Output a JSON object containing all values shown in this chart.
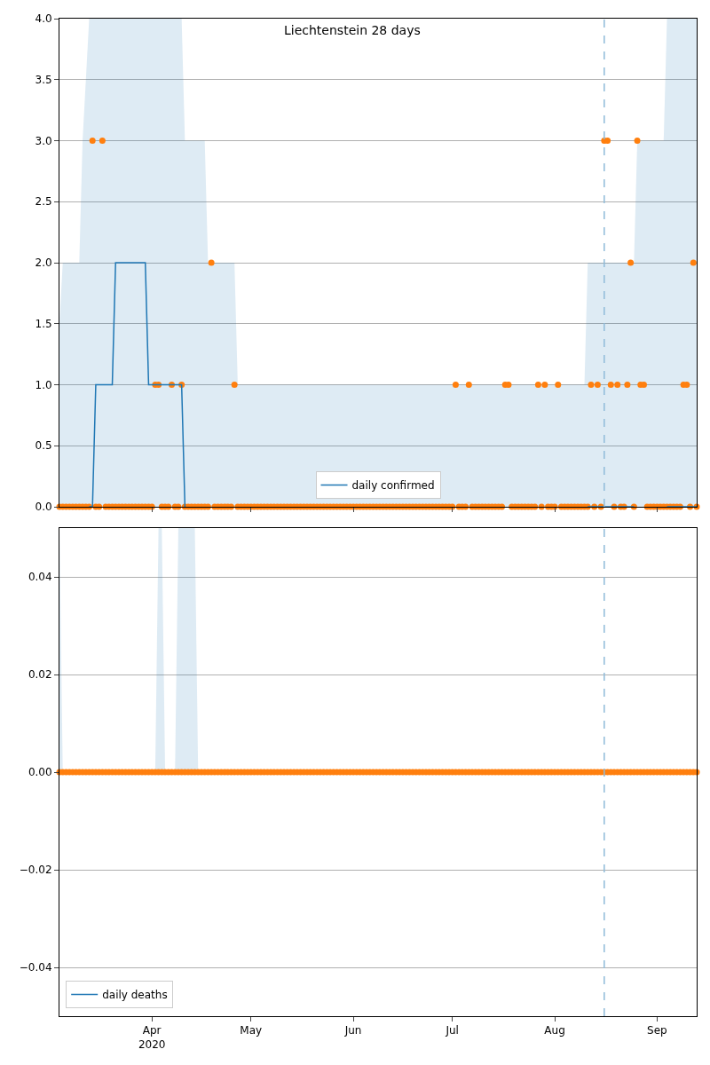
{
  "chart_data": [
    {
      "type": "line",
      "title": "Liechtenstein 28 days",
      "x": [
        "2020-03-04",
        "2020-03-05",
        "2020-03-06",
        "2020-03-07",
        "2020-03-08",
        "2020-03-09",
        "2020-03-10",
        "2020-03-11",
        "2020-03-12",
        "2020-03-13",
        "2020-03-14",
        "2020-03-15",
        "2020-03-16",
        "2020-03-17",
        "2020-03-18",
        "2020-03-19",
        "2020-03-20",
        "2020-03-21",
        "2020-03-22",
        "2020-03-23",
        "2020-03-24",
        "2020-03-25",
        "2020-03-26",
        "2020-03-27",
        "2020-03-28",
        "2020-03-29",
        "2020-03-30",
        "2020-03-31",
        "2020-04-01",
        "2020-04-02",
        "2020-04-03",
        "2020-04-04",
        "2020-04-05",
        "2020-04-06",
        "2020-04-07",
        "2020-04-08",
        "2020-04-09",
        "2020-04-10",
        "2020-04-11",
        "2020-04-12",
        "2020-04-13",
        "2020-04-14",
        "2020-04-15",
        "2020-04-16",
        "2020-04-17",
        "2020-04-18",
        "2020-04-19",
        "2020-04-20",
        "2020-04-21",
        "2020-04-22",
        "2020-04-23",
        "2020-04-24",
        "2020-04-25",
        "2020-04-26",
        "2020-04-27",
        "2020-04-28",
        "2020-04-29",
        "2020-04-30",
        "2020-05-01",
        "2020-05-02",
        "2020-05-03",
        "2020-05-04",
        "2020-05-05",
        "2020-05-06",
        "2020-05-07",
        "2020-05-08",
        "2020-05-09",
        "2020-05-10",
        "2020-05-11",
        "2020-05-12",
        "2020-05-13",
        "2020-05-14",
        "2020-05-15",
        "2020-05-16",
        "2020-05-17",
        "2020-05-18",
        "2020-05-19",
        "2020-05-20",
        "2020-05-21",
        "2020-05-22",
        "2020-05-23",
        "2020-05-24",
        "2020-05-25",
        "2020-05-26",
        "2020-05-27",
        "2020-05-28",
        "2020-05-29",
        "2020-05-30",
        "2020-05-31",
        "2020-06-01",
        "2020-06-02",
        "2020-06-03",
        "2020-06-04",
        "2020-06-05",
        "2020-06-06",
        "2020-06-07",
        "2020-06-08",
        "2020-06-09",
        "2020-06-10",
        "2020-06-11",
        "2020-06-12",
        "2020-06-13",
        "2020-06-14",
        "2020-06-15",
        "2020-06-16",
        "2020-06-17",
        "2020-06-18",
        "2020-06-19",
        "2020-06-20",
        "2020-06-21",
        "2020-06-22",
        "2020-06-23",
        "2020-06-24",
        "2020-06-25",
        "2020-06-26",
        "2020-06-27",
        "2020-06-28",
        "2020-06-29",
        "2020-06-30",
        "2020-07-01",
        "2020-07-02",
        "2020-07-03",
        "2020-07-04",
        "2020-07-05",
        "2020-07-06",
        "2020-07-07",
        "2020-07-08",
        "2020-07-09",
        "2020-07-10",
        "2020-07-11",
        "2020-07-12",
        "2020-07-13",
        "2020-07-14",
        "2020-07-15",
        "2020-07-16",
        "2020-07-17",
        "2020-07-18",
        "2020-07-19",
        "2020-07-20",
        "2020-07-21",
        "2020-07-22",
        "2020-07-23",
        "2020-07-24",
        "2020-07-25",
        "2020-07-26",
        "2020-07-27",
        "2020-07-28",
        "2020-07-29",
        "2020-07-30",
        "2020-07-31",
        "2020-08-01",
        "2020-08-02",
        "2020-08-03",
        "2020-08-04",
        "2020-08-05",
        "2020-08-06",
        "2020-08-07",
        "2020-08-08",
        "2020-08-09",
        "2020-08-10",
        "2020-08-11",
        "2020-08-12",
        "2020-08-13",
        "2020-08-14",
        "2020-08-15",
        "2020-08-16",
        "2020-08-17",
        "2020-08-18",
        "2020-08-19",
        "2020-08-20",
        "2020-08-21",
        "2020-08-22",
        "2020-08-23",
        "2020-08-24",
        "2020-08-25",
        "2020-08-26",
        "2020-08-27",
        "2020-08-28",
        "2020-08-29",
        "2020-08-30",
        "2020-08-31",
        "2020-09-01",
        "2020-09-02",
        "2020-09-03",
        "2020-09-04",
        "2020-09-05",
        "2020-09-06",
        "2020-09-07",
        "2020-09-08",
        "2020-09-09",
        "2020-09-10",
        "2020-09-11",
        "2020-09-12",
        "2020-09-13"
      ],
      "series": [
        {
          "type": "scatter",
          "color": "#ff7f0e",
          "marker": "circle",
          "values": [
            0,
            0,
            0,
            0,
            0,
            0,
            0,
            0,
            0,
            0,
            3,
            0,
            0,
            3,
            0,
            0,
            0,
            0,
            0,
            0,
            0,
            0,
            0,
            0,
            0,
            0,
            0,
            0,
            0,
            1,
            1,
            0,
            0,
            0,
            1,
            0,
            0,
            1,
            0,
            0,
            0,
            0,
            0,
            0,
            0,
            0,
            2,
            0,
            0,
            0,
            0,
            0,
            0,
            1,
            0,
            0,
            0,
            0,
            0,
            0,
            0,
            0,
            0,
            0,
            0,
            0,
            0,
            0,
            0,
            0,
            0,
            0,
            0,
            0,
            0,
            0,
            0,
            0,
            0,
            0,
            0,
            0,
            0,
            0,
            0,
            0,
            0,
            0,
            0,
            0,
            0,
            0,
            0,
            0,
            0,
            0,
            0,
            0,
            0,
            0,
            0,
            0,
            0,
            0,
            0,
            0,
            0,
            0,
            0,
            0,
            0,
            0,
            0,
            0,
            0,
            0,
            0,
            0,
            0,
            0,
            1,
            0,
            0,
            0,
            1,
            0,
            0,
            0,
            0,
            0,
            0,
            0,
            0,
            0,
            0,
            1,
            1,
            0,
            0,
            0,
            0,
            0,
            0,
            0,
            0,
            1,
            0,
            1,
            0,
            0,
            0,
            1,
            0,
            0,
            0,
            0,
            0,
            0,
            0,
            0,
            0,
            1,
            0,
            1,
            0,
            3,
            3,
            1,
            0,
            1,
            0,
            0,
            1,
            2,
            0,
            3,
            1,
            1,
            0,
            0,
            0,
            0,
            0,
            0,
            0,
            0,
            0,
            0,
            0,
            1,
            1,
            0,
            2,
            0
          ]
        },
        {
          "name": "daily confirmed",
          "color": "#1f77b4",
          "line_style": "solid",
          "x": [
            "2020-03-04",
            "2020-03-05",
            "2020-03-10",
            "2020-03-11",
            "2020-03-13",
            "2020-03-14",
            "2020-03-15",
            "2020-03-20",
            "2020-03-21",
            "2020-03-30",
            "2020-03-31",
            "2020-04-10",
            "2020-04-11",
            "2020-04-17",
            "2020-04-18",
            "2020-04-26",
            "2020-04-27",
            "2020-08-10",
            "2020-08-11",
            "2020-08-25",
            "2020-08-26",
            "2020-09-03",
            "2020-09-04",
            "2020-09-13"
          ],
          "values": [
            null,
            null,
            null,
            null,
            0,
            0,
            1,
            1,
            2,
            2,
            1,
            1,
            0,
            null,
            null,
            null,
            null,
            null,
            0,
            0,
            null,
            null,
            0,
            0
          ],
          "lower": [
            0,
            0,
            0,
            0,
            0,
            0,
            0,
            0,
            0,
            0,
            0,
            0,
            0,
            0,
            0,
            0,
            0,
            0,
            0,
            0,
            0,
            0,
            0,
            0
          ],
          "upper": [
            1.5,
            2,
            2,
            3,
            4,
            4,
            4,
            4,
            4,
            4,
            4,
            4,
            3,
            3,
            2,
            2,
            1,
            1,
            2,
            2,
            3,
            3,
            4,
            4
          ]
        }
      ],
      "xlim": [
        "2020-03-04",
        "2020-09-13"
      ],
      "ylim": [
        0,
        4
      ],
      "yticks": [
        {
          "value": 0,
          "label": "0.0"
        },
        {
          "value": 0.5,
          "label": "0.5"
        },
        {
          "value": 1,
          "label": "1.0"
        },
        {
          "value": 1.5,
          "label": "1.5"
        },
        {
          "value": 2,
          "label": "2.0"
        },
        {
          "value": 2.5,
          "label": "2.5"
        },
        {
          "value": 3,
          "label": "3.0"
        },
        {
          "value": 3.5,
          "label": "3.5"
        },
        {
          "value": 4,
          "label": "4.0"
        }
      ],
      "tick_labels": "y",
      "grid": "y",
      "legend": "bottom",
      "ref_lines": [
        {
          "axis": "x",
          "value": "2020-08-16",
          "color": "#8fbbd9",
          "line_style": "dashed"
        }
      ]
    },
    {
      "type": "line",
      "x": [
        "2020-03-04",
        "2020-03-05",
        "2020-03-06",
        "2020-03-07",
        "2020-03-08",
        "2020-03-09",
        "2020-03-10",
        "2020-03-11",
        "2020-03-12",
        "2020-03-13",
        "2020-03-14",
        "2020-03-15",
        "2020-03-16",
        "2020-03-17",
        "2020-03-18",
        "2020-03-19",
        "2020-03-20",
        "2020-03-21",
        "2020-03-22",
        "2020-03-23",
        "2020-03-24",
        "2020-03-25",
        "2020-03-26",
        "2020-03-27",
        "2020-03-28",
        "2020-03-29",
        "2020-03-30",
        "2020-03-31",
        "2020-04-01",
        "2020-04-02",
        "2020-04-03",
        "2020-04-04",
        "2020-04-05",
        "2020-04-06",
        "2020-04-07",
        "2020-04-08",
        "2020-04-09",
        "2020-04-10",
        "2020-04-11",
        "2020-04-12",
        "2020-04-13",
        "2020-04-14",
        "2020-04-15",
        "2020-04-16",
        "2020-04-17",
        "2020-04-18",
        "2020-04-19",
        "2020-04-20",
        "2020-04-21",
        "2020-04-22",
        "2020-04-23",
        "2020-04-24",
        "2020-04-25",
        "2020-04-26",
        "2020-04-27",
        "2020-04-28",
        "2020-04-29",
        "2020-04-30",
        "2020-05-01",
        "2020-05-02",
        "2020-05-03",
        "2020-05-04",
        "2020-05-05",
        "2020-05-06",
        "2020-05-07",
        "2020-05-08",
        "2020-05-09",
        "2020-05-10",
        "2020-05-11",
        "2020-05-12",
        "2020-05-13",
        "2020-05-14",
        "2020-05-15",
        "2020-05-16",
        "2020-05-17",
        "2020-05-18",
        "2020-05-19",
        "2020-05-20",
        "2020-05-21",
        "2020-05-22",
        "2020-05-23",
        "2020-05-24",
        "2020-05-25",
        "2020-05-26",
        "2020-05-27",
        "2020-05-28",
        "2020-05-29",
        "2020-05-30",
        "2020-05-31",
        "2020-06-01",
        "2020-06-02",
        "2020-06-03",
        "2020-06-04",
        "2020-06-05",
        "2020-06-06",
        "2020-06-07",
        "2020-06-08",
        "2020-06-09",
        "2020-06-10",
        "2020-06-11",
        "2020-06-12",
        "2020-06-13",
        "2020-06-14",
        "2020-06-15",
        "2020-06-16",
        "2020-06-17",
        "2020-06-18",
        "2020-06-19",
        "2020-06-20",
        "2020-06-21",
        "2020-06-22",
        "2020-06-23",
        "2020-06-24",
        "2020-06-25",
        "2020-06-26",
        "2020-06-27",
        "2020-06-28",
        "2020-06-29",
        "2020-06-30",
        "2020-07-01",
        "2020-07-02",
        "2020-07-03",
        "2020-07-04",
        "2020-07-05",
        "2020-07-06",
        "2020-07-07",
        "2020-07-08",
        "2020-07-09",
        "2020-07-10",
        "2020-07-11",
        "2020-07-12",
        "2020-07-13",
        "2020-07-14",
        "2020-07-15",
        "2020-07-16",
        "2020-07-17",
        "2020-07-18",
        "2020-07-19",
        "2020-07-20",
        "2020-07-21",
        "2020-07-22",
        "2020-07-23",
        "2020-07-24",
        "2020-07-25",
        "2020-07-26",
        "2020-07-27",
        "2020-07-28",
        "2020-07-29",
        "2020-07-30",
        "2020-07-31",
        "2020-08-01",
        "2020-08-02",
        "2020-08-03",
        "2020-08-04",
        "2020-08-05",
        "2020-08-06",
        "2020-08-07",
        "2020-08-08",
        "2020-08-09",
        "2020-08-10",
        "2020-08-11",
        "2020-08-12",
        "2020-08-13",
        "2020-08-14",
        "2020-08-15",
        "2020-08-16",
        "2020-08-17",
        "2020-08-18",
        "2020-08-19",
        "2020-08-20",
        "2020-08-21",
        "2020-08-22",
        "2020-08-23",
        "2020-08-24",
        "2020-08-25",
        "2020-08-26",
        "2020-08-27",
        "2020-08-28",
        "2020-08-29",
        "2020-08-30",
        "2020-08-31",
        "2020-09-01",
        "2020-09-02",
        "2020-09-03",
        "2020-09-04",
        "2020-09-05",
        "2020-09-06",
        "2020-09-07",
        "2020-09-08",
        "2020-09-09",
        "2020-09-10",
        "2020-09-11",
        "2020-09-12",
        "2020-09-13"
      ],
      "series": [
        {
          "type": "scatter",
          "color": "#ff7f0e",
          "marker": "circle",
          "values": [
            0,
            0,
            0,
            0,
            0,
            0,
            0,
            0,
            0,
            0,
            0,
            0,
            0,
            0,
            0,
            0,
            0,
            0,
            0,
            0,
            0,
            0,
            0,
            0,
            0,
            0,
            0,
            0,
            0,
            0,
            0,
            0,
            0,
            0,
            0,
            0,
            0,
            0,
            0,
            0,
            0,
            0,
            0,
            0,
            0,
            0,
            0,
            0,
            0,
            0,
            0,
            0,
            0,
            0,
            0,
            0,
            0,
            0,
            0,
            0,
            0,
            0,
            0,
            0,
            0,
            0,
            0,
            0,
            0,
            0,
            0,
            0,
            0,
            0,
            0,
            0,
            0,
            0,
            0,
            0,
            0,
            0,
            0,
            0,
            0,
            0,
            0,
            0,
            0,
            0,
            0,
            0,
            0,
            0,
            0,
            0,
            0,
            0,
            0,
            0,
            0,
            0,
            0,
            0,
            0,
            0,
            0,
            0,
            0,
            0,
            0,
            0,
            0,
            0,
            0,
            0,
            0,
            0,
            0,
            0,
            0,
            0,
            0,
            0,
            0,
            0,
            0,
            0,
            0,
            0,
            0,
            0,
            0,
            0,
            0,
            0,
            0,
            0,
            0,
            0,
            0,
            0,
            0,
            0,
            0,
            0,
            0,
            0,
            0,
            0,
            0,
            0,
            0,
            0,
            0,
            0,
            0,
            0,
            0,
            0,
            0,
            0,
            0,
            0,
            0,
            0,
            0,
            0,
            0,
            0,
            0,
            0,
            0,
            0,
            0,
            0,
            0,
            0,
            0,
            0,
            0,
            0,
            0,
            0,
            0,
            0,
            0,
            0,
            0,
            0,
            0,
            0,
            0,
            0
          ]
        },
        {
          "name": "daily deaths",
          "color": "#1f77b4",
          "line_style": "solid",
          "x": [
            "2020-03-04",
            "2020-03-05",
            "2020-04-02",
            "2020-04-03",
            "2020-04-04",
            "2020-04-05",
            "2020-04-08",
            "2020-04-09",
            "2020-04-14",
            "2020-04-15",
            "2020-09-13"
          ],
          "values": [
            null,
            null,
            null,
            null,
            null,
            null,
            null,
            null,
            null,
            null,
            null
          ],
          "lower": [
            0,
            0,
            0,
            0,
            0,
            0,
            0,
            0,
            0,
            0,
            0
          ],
          "upper": [
            0.05,
            0,
            0,
            0.05,
            0.05,
            0,
            0,
            0.05,
            0.05,
            0,
            0
          ]
        }
      ],
      "xlim": [
        "2020-03-04",
        "2020-09-13"
      ],
      "xticks": [
        {
          "value": "2020-04-01",
          "label": "Apr\n2020"
        },
        {
          "value": "2020-05-01",
          "label": "May"
        },
        {
          "value": "2020-06-01",
          "label": "Jun"
        },
        {
          "value": "2020-07-01",
          "label": "Jul"
        },
        {
          "value": "2020-08-01",
          "label": "Aug"
        },
        {
          "value": "2020-09-01",
          "label": "Sep"
        }
      ],
      "ylim": [
        -0.05,
        0.05
      ],
      "yticks": [
        {
          "value": -0.04,
          "label": "−0.04"
        },
        {
          "value": -0.02,
          "label": "−0.02"
        },
        {
          "value": 0,
          "label": "0.00"
        },
        {
          "value": 0.02,
          "label": "0.02"
        },
        {
          "value": 0.04,
          "label": "0.04"
        }
      ],
      "grid": "y",
      "legend": "bottom left",
      "ref_lines": [
        {
          "axis": "x",
          "value": "2020-08-16",
          "color": "#8fbbd9",
          "line_style": "dashed"
        }
      ]
    }
  ]
}
